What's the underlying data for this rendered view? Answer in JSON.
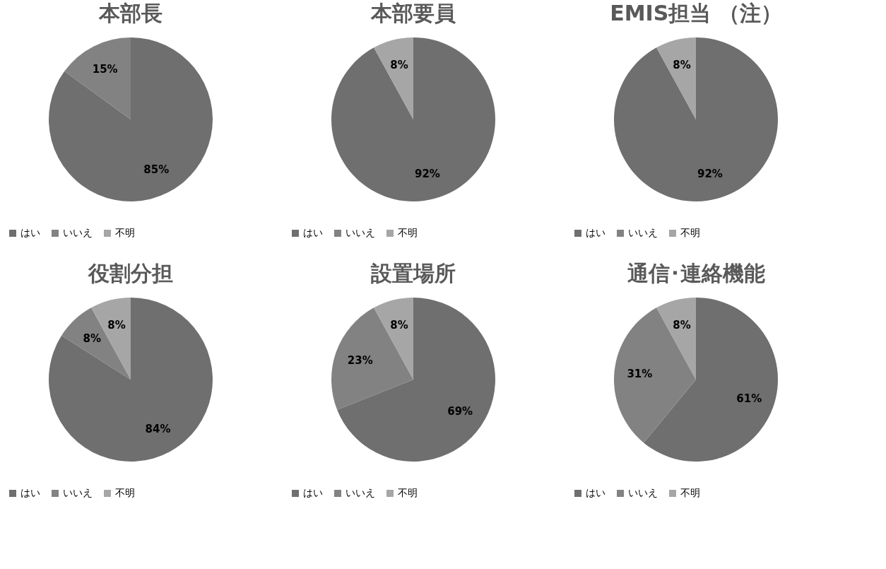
{
  "chart_data": [
    {
      "type": "pie",
      "title": "本部長",
      "categories": [
        "はい",
        "いいえ",
        "不明"
      ],
      "values": [
        85,
        15,
        0
      ],
      "colors": [
        "#6f6f6f",
        "#828282",
        "#a6a6a6"
      ],
      "value_labels": [
        "85%",
        "15%",
        null
      ],
      "legend": "bottom"
    },
    {
      "type": "pie",
      "title": "本部要員",
      "categories": [
        "はい",
        "いいえ",
        "不明"
      ],
      "values": [
        92,
        0,
        8
      ],
      "colors": [
        "#6f6f6f",
        "#828282",
        "#a6a6a6"
      ],
      "value_labels": [
        "92%",
        null,
        "8%"
      ],
      "legend": "bottom"
    },
    {
      "type": "pie",
      "title": "EMIS担当 （注）",
      "categories": [
        "はい",
        "いいえ",
        "不明"
      ],
      "values": [
        92,
        0,
        8
      ],
      "colors": [
        "#6f6f6f",
        "#828282",
        "#a6a6a6"
      ],
      "value_labels": [
        "92%",
        null,
        "8%"
      ],
      "legend": "bottom"
    },
    {
      "type": "pie",
      "title": "役割分担",
      "categories": [
        "はい",
        "いいえ",
        "不明"
      ],
      "values": [
        84,
        8,
        8
      ],
      "colors": [
        "#6f6f6f",
        "#828282",
        "#a6a6a6"
      ],
      "value_labels": [
        "84%",
        "8%",
        "8%"
      ],
      "legend": "bottom"
    },
    {
      "type": "pie",
      "title": "設置場所",
      "categories": [
        "はい",
        "いいえ",
        "不明"
      ],
      "values": [
        69,
        23,
        8
      ],
      "colors": [
        "#6f6f6f",
        "#828282",
        "#a6a6a6"
      ],
      "value_labels": [
        "69%",
        "23%",
        "8%"
      ],
      "legend": "bottom"
    },
    {
      "type": "pie",
      "title": "通信･連絡機能",
      "categories": [
        "はい",
        "いいえ",
        "不明"
      ],
      "values": [
        61,
        31,
        8
      ],
      "colors": [
        "#6f6f6f",
        "#828282",
        "#a6a6a6"
      ],
      "value_labels": [
        "61%",
        "31%",
        "8%"
      ],
      "legend": "bottom"
    }
  ]
}
